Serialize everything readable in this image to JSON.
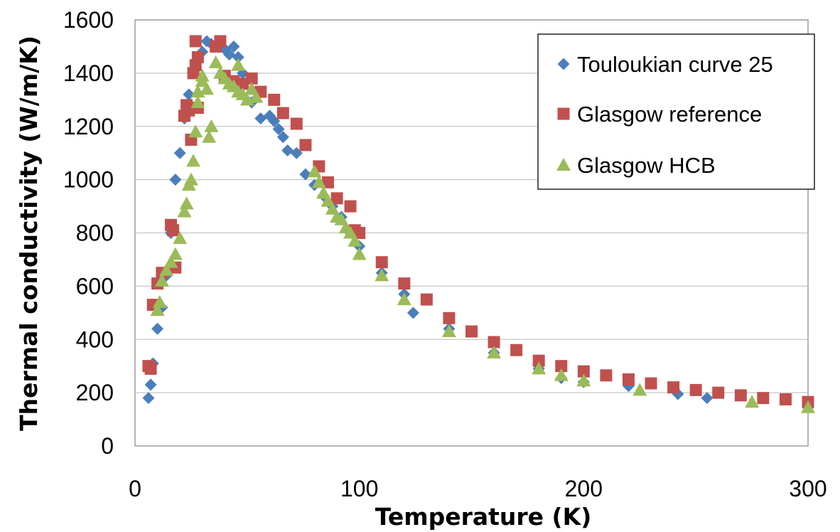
{
  "chart_data": {
    "type": "scatter",
    "xlabel": "Temperature (K)",
    "ylabel": "Thermal conductivity (W/m/K)",
    "xlim": [
      0,
      300
    ],
    "ylim": [
      0,
      1600
    ],
    "xticks": [
      0,
      100,
      200,
      300
    ],
    "yticks": [
      0,
      200,
      400,
      600,
      800,
      1000,
      1200,
      1400,
      1600
    ],
    "grid": "horizontal",
    "legend_position": "top-right",
    "series": [
      {
        "name": "Touloukian curve 25",
        "marker": "diamond",
        "color": "#4a7ebb",
        "points": [
          [
            6,
            180
          ],
          [
            7,
            230
          ],
          [
            8,
            310
          ],
          [
            10,
            440
          ],
          [
            12,
            520
          ],
          [
            14,
            640
          ],
          [
            16,
            800
          ],
          [
            18,
            1000
          ],
          [
            20,
            1100
          ],
          [
            22,
            1230
          ],
          [
            24,
            1320
          ],
          [
            26,
            1400
          ],
          [
            28,
            1460
          ],
          [
            30,
            1480
          ],
          [
            32,
            1520
          ],
          [
            34,
            1510
          ],
          [
            38,
            1500
          ],
          [
            40,
            1490
          ],
          [
            42,
            1470
          ],
          [
            44,
            1500
          ],
          [
            46,
            1460
          ],
          [
            48,
            1400
          ],
          [
            52,
            1290
          ],
          [
            56,
            1230
          ],
          [
            60,
            1240
          ],
          [
            62,
            1220
          ],
          [
            64,
            1190
          ],
          [
            66,
            1160
          ],
          [
            68,
            1110
          ],
          [
            72,
            1100
          ],
          [
            76,
            1020
          ],
          [
            80,
            980
          ],
          [
            84,
            940
          ],
          [
            88,
            900
          ],
          [
            92,
            860
          ],
          [
            96,
            800
          ],
          [
            100,
            750
          ],
          [
            110,
            650
          ],
          [
            120,
            570
          ],
          [
            124,
            500
          ],
          [
            140,
            440
          ],
          [
            160,
            350
          ],
          [
            180,
            290
          ],
          [
            190,
            255
          ],
          [
            200,
            240
          ],
          [
            220,
            225
          ],
          [
            242,
            195
          ],
          [
            255,
            180
          ],
          [
            300,
            145
          ]
        ]
      },
      {
        "name": "Glasgow reference",
        "marker": "square",
        "color": "#c0504d",
        "points": [
          [
            6,
            300
          ],
          [
            7,
            290
          ],
          [
            8,
            530
          ],
          [
            10,
            610
          ],
          [
            12,
            650
          ],
          [
            16,
            830
          ],
          [
            17,
            810
          ],
          [
            18,
            670
          ],
          [
            22,
            1240
          ],
          [
            23,
            1280
          ],
          [
            24,
            1260
          ],
          [
            25,
            1150
          ],
          [
            26,
            1400
          ],
          [
            27,
            1430
          ],
          [
            28,
            1270
          ],
          [
            28,
            1460
          ],
          [
            27,
            1520
          ],
          [
            36,
            1500
          ],
          [
            38,
            1520
          ],
          [
            40,
            1390
          ],
          [
            44,
            1370
          ],
          [
            48,
            1360
          ],
          [
            52,
            1380
          ],
          [
            56,
            1330
          ],
          [
            62,
            1300
          ],
          [
            66,
            1250
          ],
          [
            72,
            1210
          ],
          [
            76,
            1130
          ],
          [
            82,
            1050
          ],
          [
            86,
            990
          ],
          [
            90,
            930
          ],
          [
            96,
            900
          ],
          [
            98,
            810
          ],
          [
            100,
            800
          ],
          [
            110,
            690
          ],
          [
            120,
            610
          ],
          [
            130,
            550
          ],
          [
            140,
            480
          ],
          [
            150,
            430
          ],
          [
            160,
            390
          ],
          [
            170,
            360
          ],
          [
            180,
            320
          ],
          [
            190,
            300
          ],
          [
            200,
            280
          ],
          [
            210,
            265
          ],
          [
            220,
            250
          ],
          [
            230,
            235
          ],
          [
            240,
            220
          ],
          [
            250,
            210
          ],
          [
            260,
            200
          ],
          [
            270,
            190
          ],
          [
            280,
            180
          ],
          [
            290,
            175
          ],
          [
            300,
            165
          ]
        ]
      },
      {
        "name": "Glasgow HCB",
        "marker": "triangle",
        "color": "#9bbb59",
        "points": [
          [
            10,
            510
          ],
          [
            11,
            540
          ],
          [
            12,
            620
          ],
          [
            14,
            660
          ],
          [
            16,
            690
          ],
          [
            18,
            720
          ],
          [
            20,
            780
          ],
          [
            22,
            880
          ],
          [
            23,
            910
          ],
          [
            24,
            980
          ],
          [
            25,
            1000
          ],
          [
            26,
            1070
          ],
          [
            27,
            1180
          ],
          [
            28,
            1290
          ],
          [
            28,
            1330
          ],
          [
            30,
            1390
          ],
          [
            30,
            1370
          ],
          [
            32,
            1340
          ],
          [
            33,
            1160
          ],
          [
            34,
            1200
          ],
          [
            36,
            1440
          ],
          [
            38,
            1400
          ],
          [
            40,
            1380
          ],
          [
            42,
            1360
          ],
          [
            44,
            1350
          ],
          [
            46,
            1330
          ],
          [
            48,
            1320
          ],
          [
            50,
            1300
          ],
          [
            52,
            1340
          ],
          [
            54,
            1310
          ],
          [
            46,
            1430
          ],
          [
            80,
            1030
          ],
          [
            82,
            990
          ],
          [
            84,
            950
          ],
          [
            86,
            920
          ],
          [
            88,
            890
          ],
          [
            90,
            860
          ],
          [
            92,
            850
          ],
          [
            94,
            820
          ],
          [
            96,
            800
          ],
          [
            98,
            770
          ],
          [
            100,
            720
          ],
          [
            110,
            640
          ],
          [
            120,
            550
          ],
          [
            140,
            430
          ],
          [
            160,
            350
          ],
          [
            180,
            290
          ],
          [
            190,
            265
          ],
          [
            200,
            245
          ],
          [
            225,
            210
          ],
          [
            275,
            165
          ],
          [
            300,
            145
          ]
        ]
      }
    ]
  }
}
